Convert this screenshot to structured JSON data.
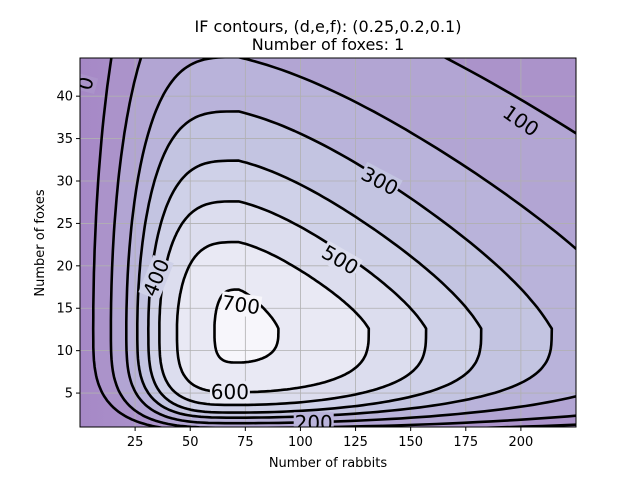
{
  "chart_data": {
    "type": "contour",
    "title": "IF contours, (d,e,f): (0.25,0.2,0.1)",
    "subtitle": "Number of foxes: 1",
    "xlabel": "Number of rabbits",
    "ylabel": "Number of foxes",
    "xlim": [
      0,
      225
    ],
    "ylim": [
      1,
      44.5
    ],
    "x_ticks": [
      25,
      50,
      75,
      100,
      125,
      150,
      175,
      200
    ],
    "y_ticks": [
      5,
      10,
      15,
      20,
      25,
      30,
      35,
      40
    ],
    "grid": true,
    "colormap": [
      "#f7f6fb",
      "#d4d6ea",
      "#b9b6d9",
      "#a284c3"
    ],
    "center": {
      "x": 72,
      "y": 12.6
    },
    "levels": [
      {
        "value": 0,
        "label": "0",
        "show_label": true
      },
      {
        "value": 100,
        "label": "100",
        "show_label": true
      },
      {
        "value": 200,
        "label": "200",
        "show_label": true
      },
      {
        "value": 300,
        "label": "300",
        "show_label": true
      },
      {
        "value": 400,
        "label": "400",
        "show_label": true
      },
      {
        "value": 500,
        "label": "500",
        "show_label": true
      },
      {
        "value": 600,
        "label": "600",
        "show_label": true
      },
      {
        "value": 700,
        "label": "700",
        "show_label": true
      }
    ]
  }
}
